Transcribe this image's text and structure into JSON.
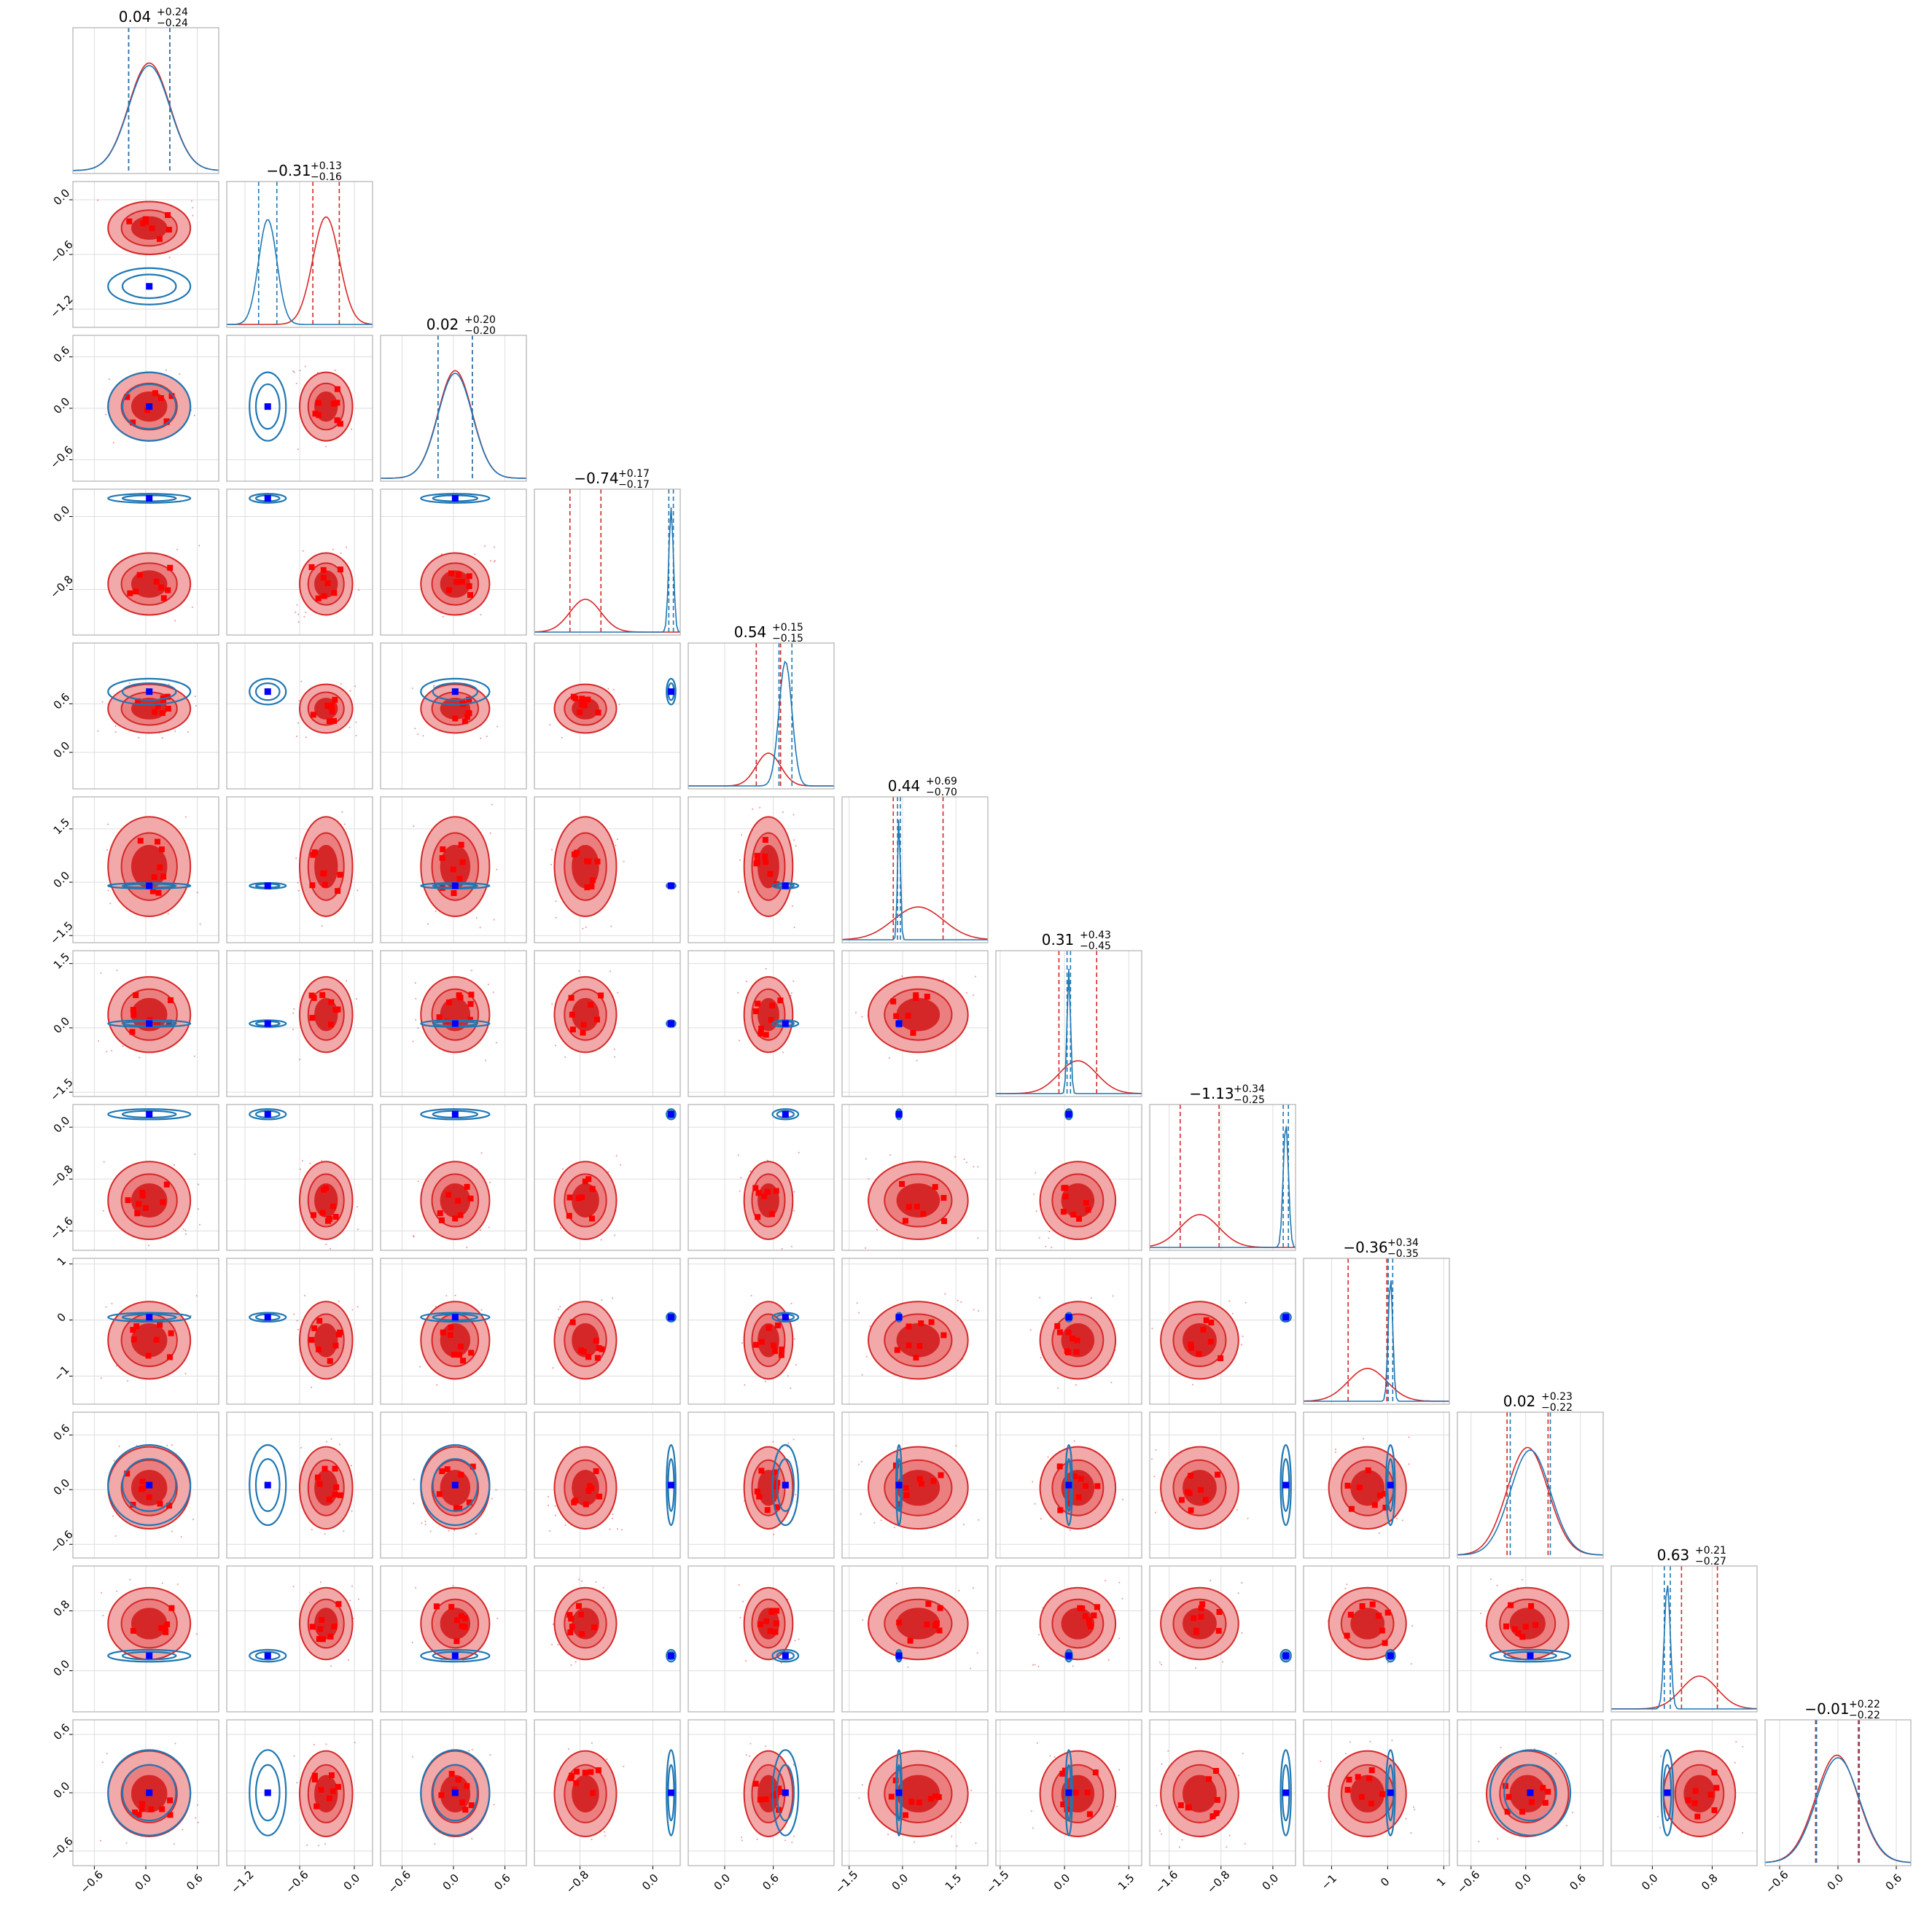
{
  "chart_data": {
    "type": "corner",
    "n_params": 12,
    "diag_titles": [
      {
        "median": "0.04",
        "plus": "+0.24",
        "minus": "−0.24"
      },
      {
        "median": "−0.31",
        "plus": "+0.13",
        "minus": "−0.16"
      },
      {
        "median": "0.02",
        "plus": "+0.20",
        "minus": "−0.20"
      },
      {
        "median": "−0.74",
        "plus": "+0.17",
        "minus": "−0.17"
      },
      {
        "median": "0.54",
        "plus": "+0.15",
        "minus": "−0.15"
      },
      {
        "median": "0.44",
        "plus": "+0.69",
        "minus": "−0.70"
      },
      {
        "median": "0.31",
        "plus": "+0.43",
        "minus": "−0.45"
      },
      {
        "median": "−1.13",
        "plus": "+0.34",
        "minus": "−0.25"
      },
      {
        "median": "−0.36",
        "plus": "+0.34",
        "minus": "−0.35"
      },
      {
        "median": "0.02",
        "plus": "+0.23",
        "minus": "−0.22"
      },
      {
        "median": "0.63",
        "plus": "+0.21",
        "minus": "−0.27"
      },
      {
        "median": "−0.01",
        "plus": "+0.22",
        "minus": "−0.22"
      }
    ],
    "ranges": [
      [
        -0.85,
        0.85
      ],
      [
        -1.4,
        0.2
      ],
      [
        -0.85,
        0.85
      ],
      [
        -1.3,
        0.3
      ],
      [
        -0.45,
        1.35
      ],
      [
        -1.7,
        2.4
      ],
      [
        -1.6,
        1.8
      ],
      [
        -1.9,
        0.35
      ],
      [
        -1.5,
        1.1
      ],
      [
        -0.75,
        0.85
      ],
      [
        -0.55,
        1.4
      ],
      [
        -0.75,
        0.75
      ]
    ],
    "ticks": [
      [
        "−0.6",
        "0.0",
        "0.6"
      ],
      [
        "−1.2",
        "−0.6",
        "0.0"
      ],
      [
        "−0.6",
        "0.0",
        "0.6"
      ],
      [
        "−0.8",
        "0.0"
      ],
      [
        "0.0",
        "0.6"
      ],
      [
        "−1.5",
        "0.0",
        "1.5"
      ],
      [
        "−1.5",
        "0.0",
        "1.5"
      ],
      [
        "−1.6",
        "−0.8",
        "0.0"
      ],
      [
        "−1",
        "0",
        "1"
      ],
      [
        "−0.6",
        "0.0",
        "0.6"
      ],
      [
        "0.0",
        "0.8"
      ],
      [
        "−0.6",
        "0.0",
        "0.6"
      ]
    ],
    "series": [
      {
        "color": "#d62728",
        "mean": [
          0.04,
          -0.31,
          0.02,
          -0.74,
          0.54,
          0.44,
          0.31,
          -1.13,
          -0.36,
          0.02,
          0.63,
          -0.01
        ],
        "std": [
          0.24,
          0.145,
          0.2,
          0.17,
          0.15,
          0.7,
          0.44,
          0.3,
          0.345,
          0.225,
          0.24,
          0.22
        ]
      },
      {
        "color": "#1f77b4",
        "mean": [
          0.04,
          -0.95,
          0.02,
          0.2,
          0.75,
          -0.1,
          0.1,
          0.2,
          0.05,
          0.05,
          0.2,
          0.0
        ],
        "std": [
          0.24,
          0.1,
          0.2,
          0.025,
          0.08,
          0.04,
          0.04,
          0.04,
          0.04,
          0.22,
          0.04,
          0.22
        ]
      }
    ],
    "truth_markers": {
      "color": "#0000ff",
      "values": [
        0.04,
        -0.95,
        0.02,
        0.2,
        0.75,
        -0.1,
        0.1,
        0.2,
        0.05,
        0.05,
        0.2,
        0.0
      ]
    },
    "grid": true,
    "colors": {
      "red": "#d62728",
      "blue": "#1f77b4",
      "truth": "#0000ff",
      "frame": "#b0b0b0",
      "grid": "#dddddd"
    }
  }
}
